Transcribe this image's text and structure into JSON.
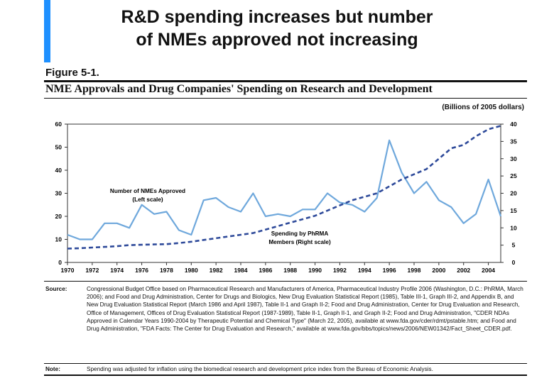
{
  "slide": {
    "title": "R&D spending increases but number\nof NMEs approved not increasing",
    "accent_color": "#1e90ff"
  },
  "figure": {
    "label": "Figure 5-1.",
    "title": "NME Approvals and Drug Companies' Spending on Research and Development",
    "units": "(Billions of 2005 dollars)",
    "source_label": "Source:",
    "source_text": "Congressional Budget Office based on Pharmaceutical Research and Manufacturers of America, Pharmaceutical Industry Profile 2006 (Washington, D.C.: PhRMA, March 2006); and Food and Drug Administration, Center for Drugs and Biologics, New Drug Evaluation Statistical Report (1985), Table III-1, Graph III-2, and Appendix B, and New Drug Evaluation Statistical Report (March 1986 and April 1987), Table II-1 and Graph II-2; Food and Drug Administration, Center for Drug Evaluation and Research, Office of Management, Offices of Drug Evaluation Statistical Report (1987-1989), Table II-1, Graph II-1, and Graph II-2; Food and Drug Administration, \"CDER NDAs Approved in Calendar Years 1990-2004 by Therapeutic Potential and Chemical Type\" (March 22, 2005), available at www.fda.gov/cder/rdmt/pstable.htm; and Food and Drug Administration, \"FDA Facts: The Center for Drug Evaluation and Research,\" available at www.fda.gov/bbs/topics/news/2006/NEW01342/Fact_Sheet_CDER.pdf.",
    "note_label": "Note:",
    "note_text": "Spending was adjusted for inflation using the biomedical research and development price index from the Bureau of Economic Analysis."
  },
  "chart_data": {
    "type": "line",
    "x": [
      1970,
      1971,
      1972,
      1973,
      1974,
      1975,
      1976,
      1977,
      1978,
      1979,
      1980,
      1981,
      1982,
      1983,
      1984,
      1985,
      1986,
      1987,
      1988,
      1989,
      1990,
      1991,
      1992,
      1993,
      1994,
      1995,
      1996,
      1997,
      1998,
      1999,
      2000,
      2001,
      2002,
      2003,
      2004,
      2005
    ],
    "x_ticks": [
      "1970",
      "1972",
      "1974",
      "1976",
      "1978",
      "1980",
      "1982",
      "1984",
      "1986",
      "1988",
      "1990",
      "1992",
      "1994",
      "1996",
      "1998",
      "2000",
      "2002",
      "2004"
    ],
    "xlim": [
      1970,
      2005
    ],
    "ylim_left": [
      0,
      60
    ],
    "yticks_left": [
      "0",
      "10",
      "20",
      "30",
      "40",
      "50",
      "60"
    ],
    "ylim_right": [
      0,
      40
    ],
    "yticks_right": [
      "0",
      "5",
      "10",
      "15",
      "20",
      "25",
      "30",
      "35",
      "40"
    ],
    "grid": false,
    "legend": "inline labels",
    "series": [
      {
        "name": "Number of NMEs Approved",
        "label_line2": "(Left scale)",
        "axis": "left",
        "style": "solid",
        "color": "#6fa8dc",
        "values": [
          12,
          10,
          10,
          17,
          17,
          15,
          25,
          21,
          22,
          14,
          12,
          27,
          28,
          24,
          22,
          30,
          20,
          21,
          20,
          23,
          23,
          30,
          26,
          25,
          22,
          28,
          53,
          39,
          30,
          35,
          27,
          24,
          17,
          21,
          36,
          20
        ]
      },
      {
        "name": "Spending by PhRMA",
        "label_line2": "Members (Right scale)",
        "axis": "right",
        "style": "dashed",
        "color": "#2e4a9a",
        "values": [
          4,
          4.1,
          4.3,
          4.5,
          4.7,
          5,
          5.1,
          5.2,
          5.3,
          5.6,
          6,
          6.5,
          7,
          7.5,
          8,
          8.5,
          9.5,
          10.5,
          11.5,
          12.5,
          13.5,
          15,
          16.5,
          18,
          19,
          20,
          22,
          24,
          25.5,
          27,
          30,
          33,
          34,
          36.5,
          38.5,
          39.5
        ]
      }
    ]
  }
}
